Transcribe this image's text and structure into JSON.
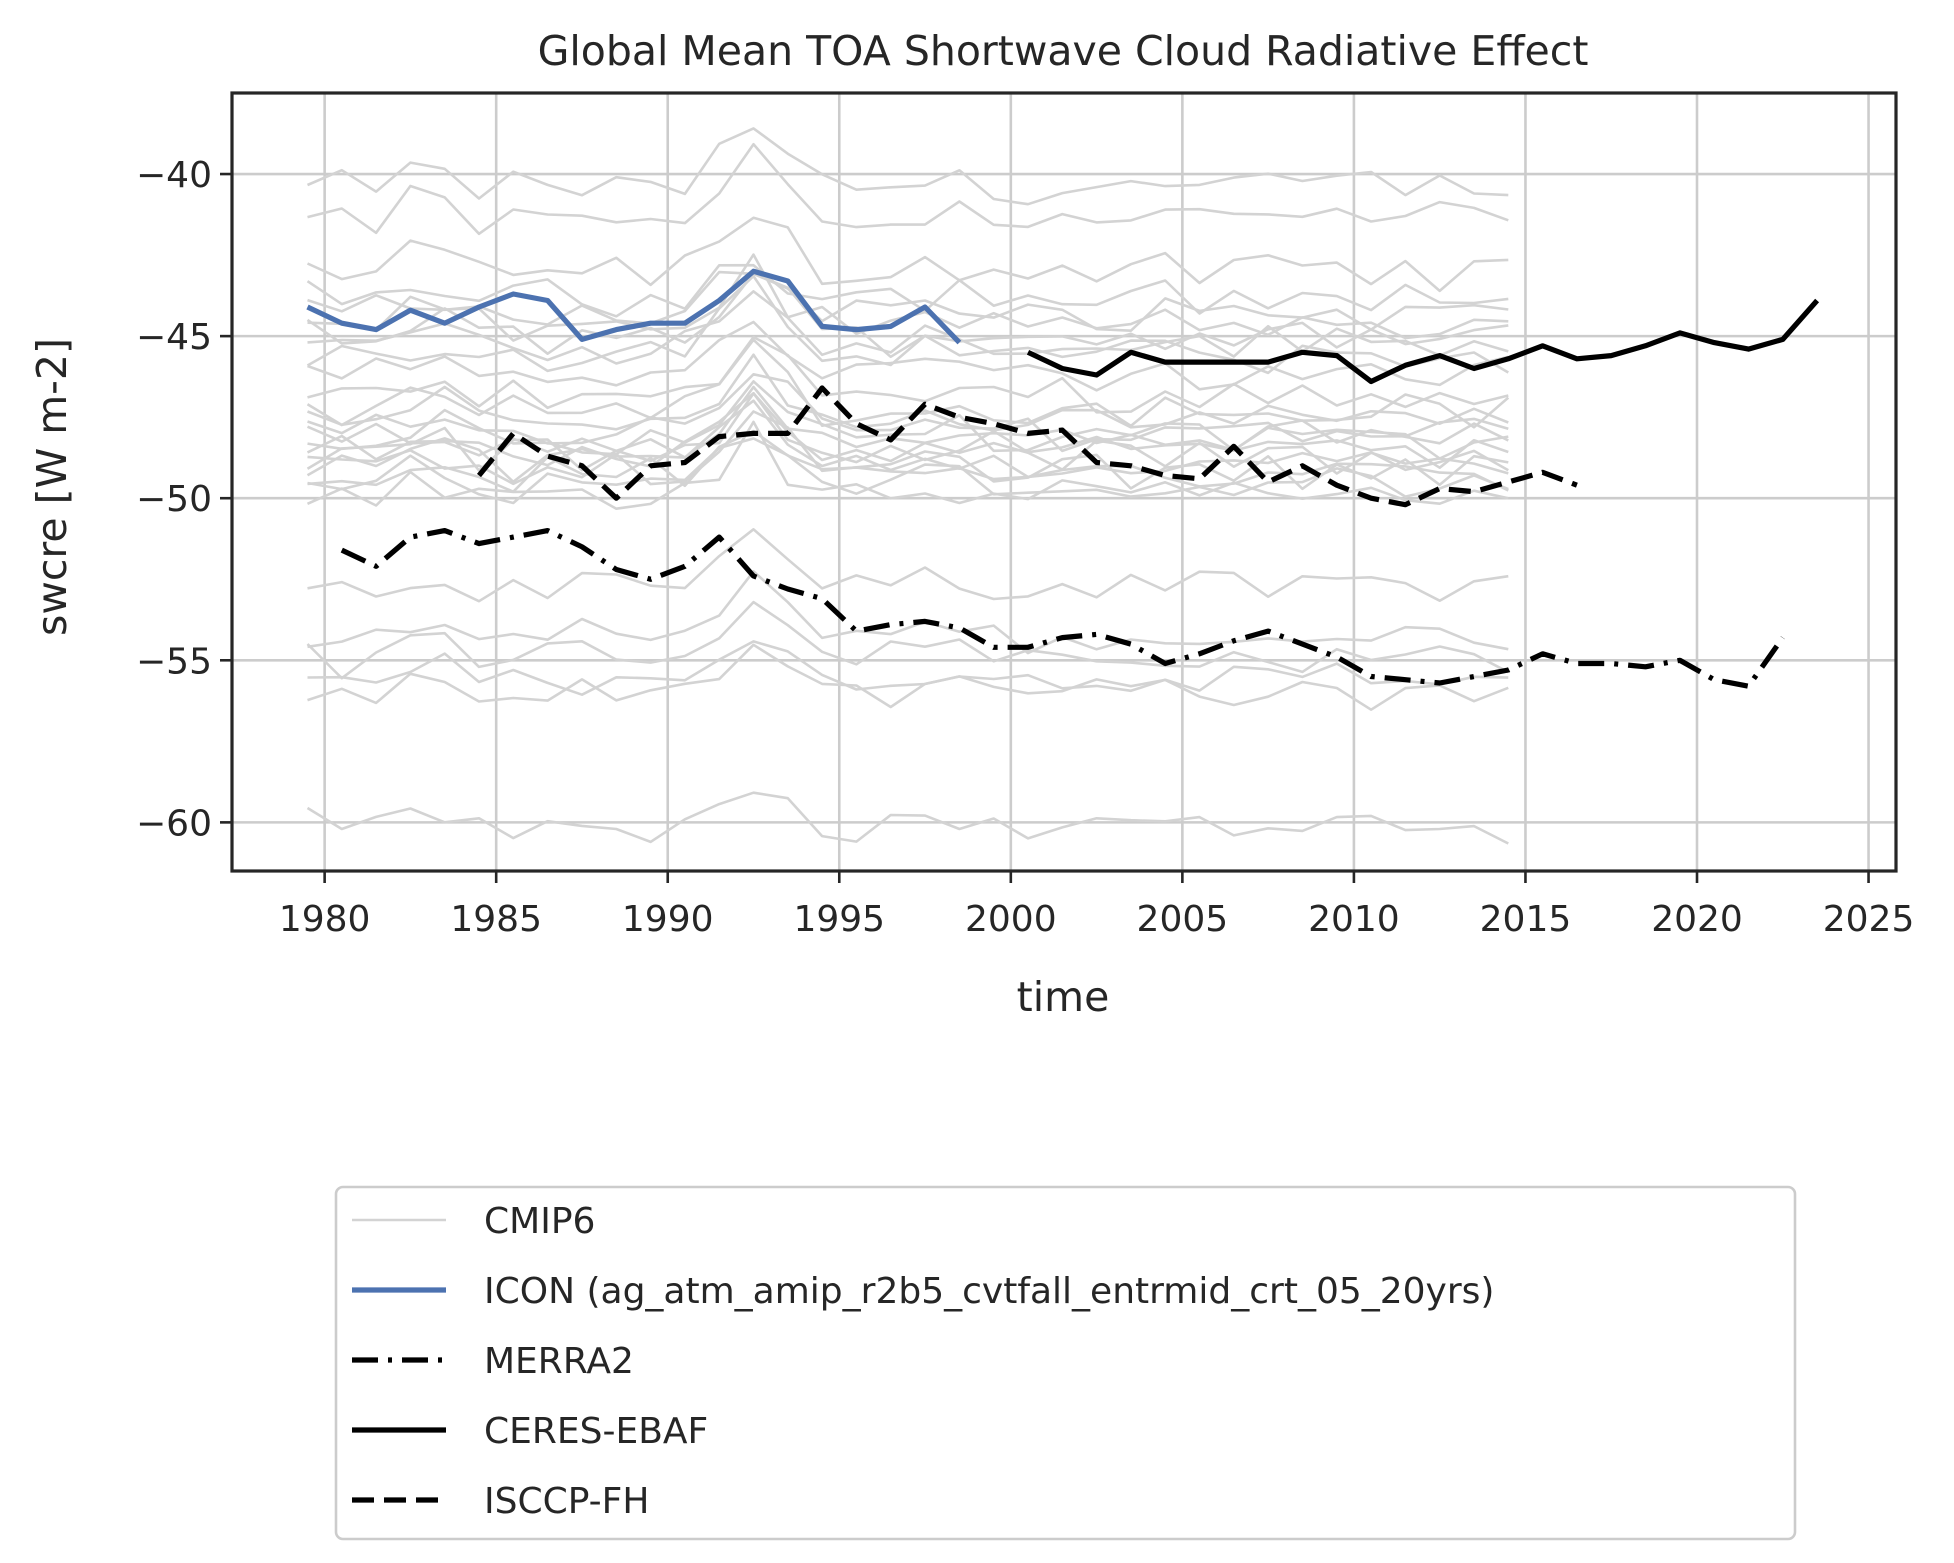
{
  "chart_data": {
    "type": "line",
    "title": "Global Mean TOA Shortwave Cloud Radiative Effect",
    "xlabel": "time",
    "ylabel": "swcre [W m-2]",
    "xlim": [
      1977.3,
      2025.8
    ],
    "ylim": [
      -61.5,
      -37.5
    ],
    "xticks": [
      1980,
      1985,
      1990,
      1995,
      2000,
      2005,
      2010,
      2015,
      2020,
      2025
    ],
    "yticks": [
      -40,
      -45,
      -50,
      -55,
      -60
    ],
    "xtick_labels": [
      "1980",
      "1985",
      "1990",
      "1995",
      "2000",
      "2005",
      "2010",
      "2015",
      "2020",
      "2025"
    ],
    "ytick_labels": [
      "−40",
      "−45",
      "−50",
      "−55",
      "−60"
    ],
    "grid": true,
    "legend_position": "bottom (below the plot)",
    "legend": [
      {
        "label": "CMIP6",
        "color": "#d3d3d3",
        "style": "solid-thin"
      },
      {
        "label": "ICON (ag_atm_amip_r2b5_cvtfall_entrmid_crt_05_20yrs)",
        "color": "#4c72b0",
        "style": "solid"
      },
      {
        "label": "MERRA2",
        "color": "#000000",
        "style": "dashdot"
      },
      {
        "label": "CERES-EBAF",
        "color": "#000000",
        "style": "solid"
      },
      {
        "label": "ISCCP-FH",
        "color": "#000000",
        "style": "dashed"
      }
    ],
    "cmip6_years": [
      1979.5,
      2014.5
    ],
    "cmip6_base_levels": [
      -40.4,
      -41.3,
      -43.0,
      -43.8,
      -44.3,
      -44.7,
      -45.0,
      -45.2,
      -45.6,
      -46.2,
      -46.8,
      -47.3,
      -47.6,
      -47.9,
      -48.1,
      -48.3,
      -48.5,
      -48.7,
      -48.9,
      -49.1,
      -49.3,
      -49.6,
      -50.0,
      -52.8,
      -54.3,
      -55.0,
      -55.6,
      -56.0,
      -60.1
    ],
    "series": [
      {
        "name": "ICON (ag_atm_amip_r2b5_cvtfall_entrmid_crt_05_20yrs)",
        "color": "#4c72b0",
        "dash": "",
        "x": [
          1979.5,
          1980.5,
          1981.5,
          1982.5,
          1983.5,
          1984.5,
          1985.5,
          1986.5,
          1987.5,
          1988.5,
          1989.5,
          1990.5,
          1991.5,
          1992.5,
          1993.5,
          1994.5,
          1995.5,
          1996.5,
          1997.5,
          1998.5
        ],
        "y": [
          -44.1,
          -44.6,
          -44.8,
          -44.2,
          -44.6,
          -44.1,
          -43.7,
          -43.9,
          -45.1,
          -44.8,
          -44.6,
          -44.6,
          -43.9,
          -43.0,
          -43.3,
          -44.7,
          -44.8,
          -44.7,
          -44.1,
          -45.2
        ]
      },
      {
        "name": "MERRA2",
        "color": "#000000",
        "dash": "26,10,4,10",
        "x": [
          1980.5,
          1981.5,
          1982.5,
          1983.5,
          1984.5,
          1985.5,
          1986.5,
          1987.5,
          1988.5,
          1989.5,
          1990.5,
          1991.5,
          1992.5,
          1993.5,
          1994.5,
          1995.5,
          1996.5,
          1997.5,
          1998.5,
          1999.5,
          2000.5,
          2001.5,
          2002.5,
          2003.5,
          2004.5,
          2005.5,
          2006.5,
          2007.5,
          2008.5,
          2009.5,
          2010.5,
          2011.5,
          2012.5,
          2013.5,
          2014.5,
          2015.5,
          2016.5,
          2017.5,
          2018.5,
          2019.5,
          2020.5,
          2021.5,
          2022.5
        ],
        "y": [
          -51.6,
          -52.1,
          -51.2,
          -51.0,
          -51.4,
          -51.2,
          -51.0,
          -51.5,
          -52.2,
          -52.5,
          -52.1,
          -51.2,
          -52.4,
          -52.8,
          -53.1,
          -54.1,
          -53.9,
          -53.8,
          -54.0,
          -54.6,
          -54.6,
          -54.3,
          -54.2,
          -54.5,
          -55.1,
          -54.8,
          -54.4,
          -54.1,
          -54.5,
          -54.9,
          -55.5,
          -55.6,
          -55.7,
          -55.5,
          -55.3,
          -54.8,
          -55.1,
          -55.1,
          -55.2,
          -55.0,
          -55.6,
          -55.8,
          -54.3
        ]
      },
      {
        "name": "CERES-EBAF",
        "color": "#000000",
        "dash": "",
        "x": [
          2000.5,
          2001.5,
          2002.5,
          2003.5,
          2004.5,
          2005.5,
          2006.5,
          2007.5,
          2008.5,
          2009.5,
          2010.5,
          2011.5,
          2012.5,
          2013.5,
          2014.5,
          2015.5,
          2016.5,
          2017.5,
          2018.5,
          2019.5,
          2020.5,
          2021.5,
          2022.5,
          2023.5
        ],
        "y": [
          -45.5,
          -46.0,
          -46.2,
          -45.5,
          -45.8,
          -45.8,
          -45.8,
          -45.8,
          -45.5,
          -45.6,
          -46.4,
          -45.9,
          -45.6,
          -46.0,
          -45.7,
          -45.3,
          -45.7,
          -45.6,
          -45.3,
          -44.9,
          -45.2,
          -45.4,
          -45.1,
          -43.9
        ]
      },
      {
        "name": "ISCCP-FH",
        "color": "#000000",
        "dash": "22,10",
        "x": [
          1984.5,
          1985.5,
          1986.5,
          1987.5,
          1988.5,
          1989.5,
          1990.5,
          1991.5,
          1992.5,
          1993.5,
          1994.5,
          1995.5,
          1996.5,
          1997.5,
          1998.5,
          1999.5,
          2000.5,
          2001.5,
          2002.5,
          2003.5,
          2004.5,
          2005.5,
          2006.5,
          2007.5,
          2008.5,
          2009.5,
          2010.5,
          2011.5,
          2012.5,
          2013.5,
          2014.5,
          2015.5,
          2016.5
        ],
        "y": [
          -49.3,
          -48.0,
          -48.7,
          -49.0,
          -50.0,
          -49.0,
          -48.9,
          -48.1,
          -48.0,
          -48.0,
          -46.6,
          -47.7,
          -48.2,
          -47.1,
          -47.5,
          -47.7,
          -48.0,
          -47.9,
          -48.9,
          -49.0,
          -49.3,
          -49.4,
          -48.4,
          -49.5,
          -49.0,
          -49.6,
          -50.0,
          -50.2,
          -49.7,
          -49.8,
          -49.5,
          -49.2,
          -49.6
        ]
      }
    ]
  }
}
